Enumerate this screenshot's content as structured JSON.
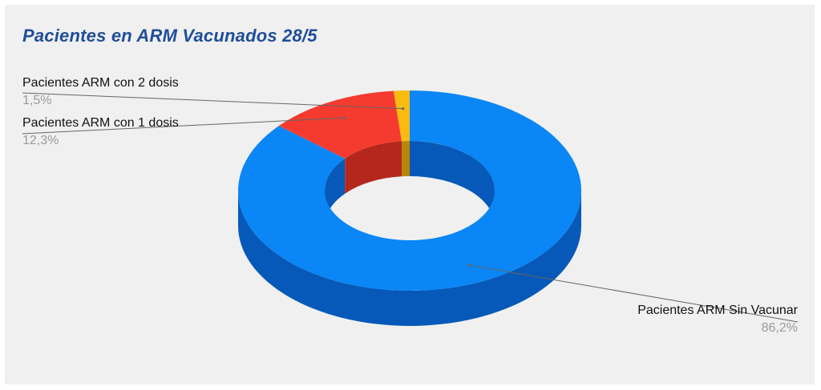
{
  "chart_data": {
    "type": "pie",
    "variant": "donut-3d",
    "title": "Pacientes en ARM Vacunados 28/5",
    "slices": [
      {
        "label": "Pacientes ARM Sin Vacunar",
        "value": 86.2,
        "display": "86,2%",
        "color": "#0a86f6",
        "side_color": "#0659b8"
      },
      {
        "label": "Pacientes ARM con 1 dosis",
        "value": 12.3,
        "display": "12,3%",
        "color": "#f53b2f",
        "side_color": "#b5271d"
      },
      {
        "label": "Pacientes ARM con 2 dosis",
        "value": 1.5,
        "display": "1,5%",
        "color": "#f9bb12",
        "side_color": "#b8870a"
      }
    ],
    "legend": "none",
    "labels": "outside-with-leader-lines"
  },
  "colors": {
    "title": "#1f4e99",
    "background": "#f0f0f0",
    "leader_line": "#666666"
  }
}
